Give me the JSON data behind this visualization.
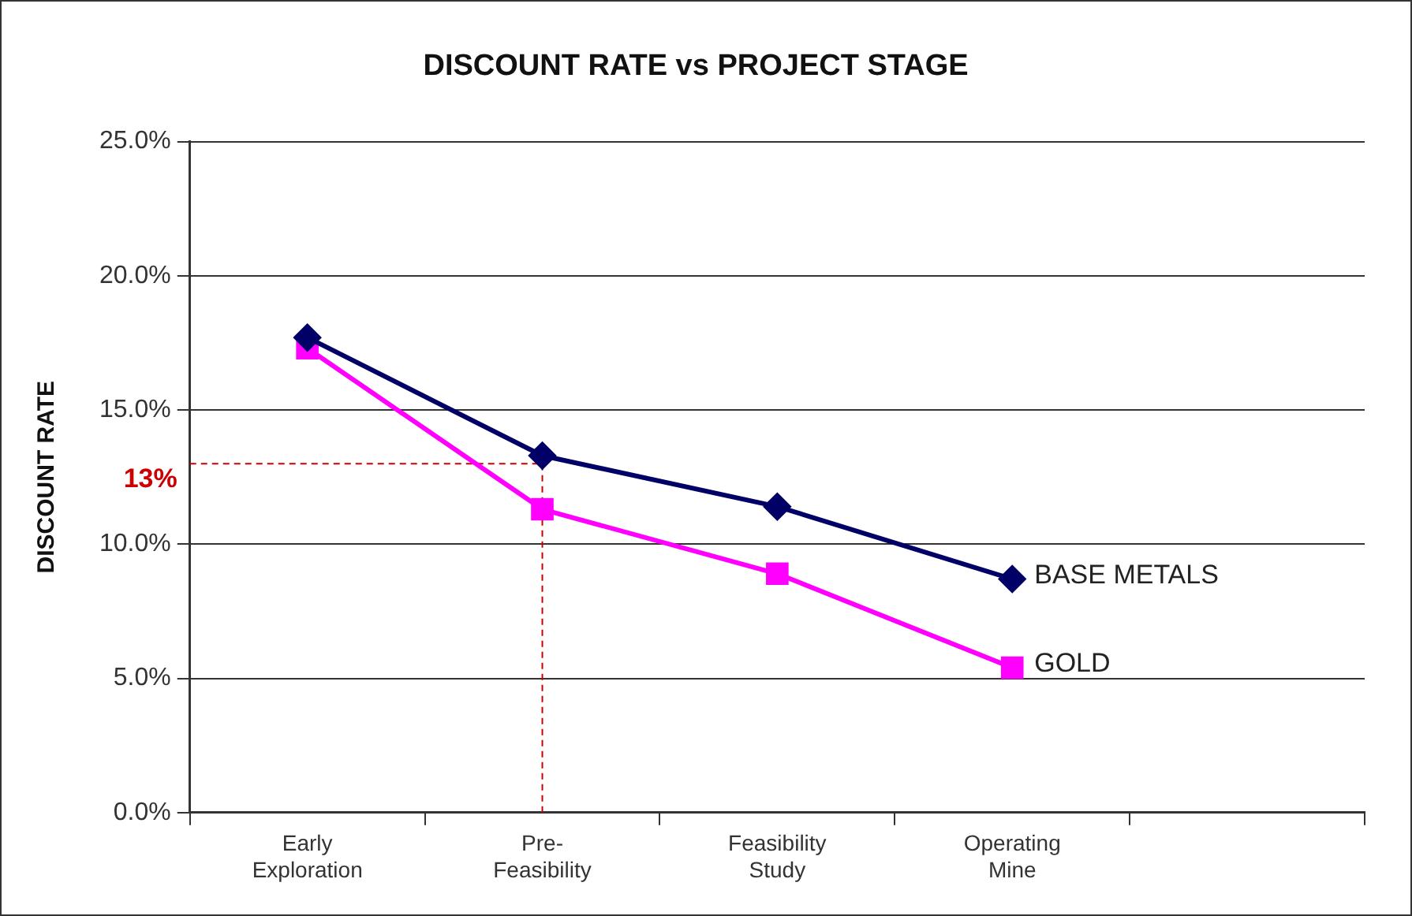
{
  "chart_data": {
    "type": "line",
    "title": "DISCOUNT RATE vs PROJECT STAGE",
    "ylabel": "DISCOUNT RATE",
    "categories": [
      "Early\nExploration",
      "Pre-\nFeasibility",
      "Feasibility\nStudy",
      "Operating\nMine",
      null
    ],
    "series": [
      {
        "name": "BASE METALS",
        "color": "#000066",
        "marker": "diamond",
        "values": [
          17.7,
          13.3,
          11.4,
          8.7,
          null
        ]
      },
      {
        "name": "GOLD",
        "color": "#ff00ff",
        "marker": "square",
        "values": [
          17.3,
          11.3,
          8.9,
          5.4,
          null
        ]
      }
    ],
    "ylim": [
      0,
      25
    ],
    "yticks": [
      {
        "value": 0,
        "label": "0.0%"
      },
      {
        "value": 5,
        "label": "5.0%"
      },
      {
        "value": 10,
        "label": "10.0%"
      },
      {
        "value": 15,
        "label": "15.0%"
      },
      {
        "value": 20,
        "label": "20.0%"
      },
      {
        "value": 25,
        "label": "25.0%"
      }
    ],
    "ref_lines": [
      {
        "axis": "y",
        "value": 13,
        "label": "13%",
        "color": "#cc0000",
        "line_style": "dashed"
      },
      {
        "axis": "x",
        "value": "Pre-\nFeasibility",
        "label": null,
        "color": "#cc0000",
        "line_style": "dashed"
      }
    ],
    "grid": "y",
    "legend": false,
    "line_style": "solid"
  }
}
